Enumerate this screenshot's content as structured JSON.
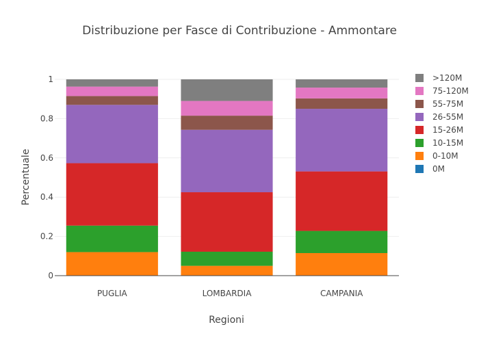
{
  "chart_data": {
    "type": "bar",
    "stacked": true,
    "title": "Distribuzione per Fasce di Contribuzione - Ammontare",
    "xlabel": "Regioni",
    "ylabel": "Percentuale",
    "ylim": [
      0,
      1
    ],
    "yticks": [
      "0",
      "0.2",
      "0.4",
      "0.6",
      "0.8",
      "1"
    ],
    "grid": true,
    "legend_position": "right",
    "categories": [
      "PUGLIA",
      "LOMBARDIA",
      "CAMPANIA"
    ],
    "series": [
      {
        "name": "0M",
        "color": "#1f77b4",
        "values": [
          0.0,
          0.0,
          0.0
        ]
      },
      {
        "name": "0-10M",
        "color": "#ff7f0e",
        "values": [
          0.12,
          0.05,
          0.115
        ]
      },
      {
        "name": "10-15M",
        "color": "#2ca02c",
        "values": [
          0.135,
          0.072,
          0.113
        ]
      },
      {
        "name": "15-26M",
        "color": "#d62728",
        "values": [
          0.318,
          0.303,
          0.303
        ]
      },
      {
        "name": "26-55M",
        "color": "#9467bd",
        "values": [
          0.297,
          0.318,
          0.319
        ]
      },
      {
        "name": "55-75M",
        "color": "#8c564b",
        "values": [
          0.045,
          0.072,
          0.053
        ]
      },
      {
        "name": "75-120M",
        "color": "#e377c2",
        "values": [
          0.048,
          0.075,
          0.055
        ]
      },
      {
        "name": ">120M",
        "color": "#7f7f7f",
        "values": [
          0.037,
          0.11,
          0.042
        ]
      }
    ]
  }
}
